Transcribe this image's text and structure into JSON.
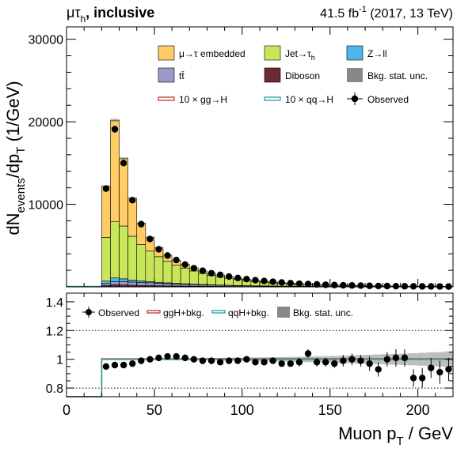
{
  "header": {
    "channel_prefix": "μτ",
    "channel_sub": "h",
    "channel_suffix": ", inclusive",
    "lumi_pre": "41.5 fb",
    "lumi_sup": "-1",
    "lumi_post": " (2017, 13 TeV)"
  },
  "colors": {
    "mu_tau_embedded": "#ffcc66",
    "jet_tau": "#c8e65a",
    "z_ll": "#4db6e6",
    "ttbar": "#9999cc",
    "diboson": "#6b2b35",
    "stat_unc": "#888888",
    "ggH": "#c0392b",
    "qqH": "#1fa39a",
    "data": "#000000"
  },
  "legend_main": [
    {
      "key": "emb",
      "pre": "μ→τ embedded",
      "sub": "",
      "kind": "box",
      "color_key": "mu_tau_embedded"
    },
    {
      "key": "jet",
      "pre": "Jet→τ",
      "sub": "h",
      "kind": "box",
      "color_key": "jet_tau"
    },
    {
      "key": "zll",
      "pre": "Z→ll",
      "sub": "",
      "kind": "box",
      "color_key": "z_ll"
    },
    {
      "key": "tt",
      "pre": "tt̄",
      "sub": "",
      "kind": "box",
      "color_key": "ttbar"
    },
    {
      "key": "vv",
      "pre": "Diboson",
      "sub": "",
      "kind": "box",
      "color_key": "diboson"
    },
    {
      "key": "stat",
      "pre": "Bkg. stat. unc.",
      "sub": "",
      "kind": "box",
      "color_key": "stat_unc"
    },
    {
      "key": "ggh",
      "pre": "10 × gg→H",
      "sub": "",
      "kind": "line",
      "color_key": "ggH"
    },
    {
      "key": "qqh",
      "pre": "10 × qq→H",
      "sub": "",
      "kind": "line",
      "color_key": "qqH"
    },
    {
      "key": "obs",
      "pre": "Observed",
      "sub": "",
      "kind": "point",
      "color_key": "data"
    }
  ],
  "legend_ratio": [
    {
      "key": "obs",
      "label": "Observed",
      "kind": "point",
      "color_key": "data"
    },
    {
      "key": "ggh",
      "label": "ggH+bkg.",
      "kind": "line",
      "color_key": "ggH"
    },
    {
      "key": "qqh",
      "label": "qqH+bkg.",
      "kind": "line",
      "color_key": "qqH"
    },
    {
      "key": "stat",
      "label": "Bkg. stat. unc.",
      "kind": "box",
      "color_key": "stat_unc"
    }
  ],
  "chart_data": {
    "type": "bar",
    "stacked": true,
    "xlabel_main": "Muon p",
    "xlabel_sub": "T",
    "xlabel_unit": " / GeV",
    "ylabel": "dN_events/dp_T (1/GeV)",
    "ylabel_parts": {
      "a": "dN",
      "a_sub": "events",
      "b": "/dp",
      "b_sub": "T",
      "c": "  (1/GeV)"
    },
    "xlim": [
      0,
      220
    ],
    "ylim_main": [
      0,
      31500
    ],
    "ylim_ratio": [
      0.74,
      1.46
    ],
    "x_ticks": [
      0,
      50,
      100,
      150,
      200
    ],
    "y_ticks_main": [
      10000,
      20000,
      30000
    ],
    "y_ticks_ratio": [
      0.8,
      1,
      1.2,
      1.4
    ],
    "ratio_dotted_lines": [
      0.8,
      1.2
    ],
    "bin_edges": [
      20,
      25,
      30,
      35,
      40,
      45,
      50,
      55,
      60,
      65,
      70,
      75,
      80,
      85,
      90,
      95,
      100,
      105,
      110,
      115,
      120,
      125,
      130,
      135,
      140,
      145,
      150,
      155,
      160,
      165,
      170,
      175,
      180,
      185,
      190,
      195,
      200,
      205,
      210,
      215,
      220
    ],
    "stack_order": [
      "diboson",
      "ttbar",
      "z_ll",
      "jet_tau",
      "mu_tau_embedded"
    ],
    "series": [
      {
        "name": "Diboson",
        "key": "diboson",
        "values": [
          150,
          250,
          220,
          190,
          170,
          150,
          130,
          115,
          100,
          90,
          80,
          70,
          60,
          55,
          48,
          42,
          37,
          33,
          29,
          26,
          23,
          20,
          18,
          16,
          14,
          12,
          11,
          10,
          9,
          8,
          7,
          6,
          6,
          5,
          5,
          4,
          4,
          4,
          3,
          3
        ]
      },
      {
        "name": "tt̄",
        "key": "ttbar",
        "values": [
          250,
          380,
          400,
          390,
          370,
          340,
          310,
          280,
          250,
          220,
          195,
          170,
          150,
          130,
          115,
          100,
          88,
          77,
          68,
          60,
          52,
          46,
          40,
          35,
          31,
          27,
          24,
          21,
          19,
          17,
          15,
          13,
          12,
          11,
          10,
          9,
          8,
          7,
          6,
          5
        ]
      },
      {
        "name": "Z→ll",
        "key": "z_ll",
        "values": [
          300,
          450,
          350,
          250,
          180,
          140,
          110,
          90,
          75,
          63,
          53,
          45,
          39,
          33,
          28,
          24,
          21,
          18,
          16,
          14,
          12,
          10,
          9,
          8,
          7,
          6,
          5,
          5,
          4,
          4,
          3,
          3,
          3,
          2,
          2,
          2,
          2,
          2,
          1,
          1
        ]
      },
      {
        "name": "Jet→τh",
        "key": "jet_tau",
        "values": [
          5300,
          6800,
          6400,
          5300,
          4400,
          3700,
          3100,
          2600,
          2200,
          1900,
          1600,
          1350,
          1150,
          1000,
          850,
          720,
          610,
          520,
          450,
          390,
          335,
          290,
          250,
          215,
          185,
          160,
          140,
          122,
          106,
          92,
          80,
          70,
          61,
          53,
          47,
          41,
          36,
          32,
          28,
          24
        ]
      },
      {
        "name": "μ→τ embedded",
        "key": "mu_tau_embedded",
        "values": [
          6200,
          12300,
          8200,
          4600,
          2600,
          1700,
          1120,
          780,
          580,
          450,
          360,
          300,
          250,
          215,
          185,
          160,
          140,
          120,
          106,
          94,
          83,
          74,
          66,
          58,
          52,
          46,
          41,
          37,
          33,
          30,
          27,
          24,
          22,
          20,
          18,
          16,
          15,
          14,
          13,
          12
        ]
      }
    ],
    "observed": [
      11900,
      19100,
      15000,
      10500,
      7600,
      5800,
      4550,
      3800,
      3250,
      2700,
      2260,
      1950,
      1650,
      1450,
      1250,
      1070,
      940,
      810,
      710,
      620,
      530,
      450,
      380,
      340,
      300,
      250,
      220,
      190,
      170,
      150,
      120,
      100,
      95,
      80,
      72,
      60,
      55,
      50,
      45,
      38
    ],
    "ratio_observed": [
      0.95,
      0.96,
      0.96,
      0.97,
      0.99,
      1.0,
      1.01,
      1.02,
      1.02,
      1.01,
      1.0,
      0.99,
      0.99,
      0.98,
      0.99,
      0.99,
      1.0,
      0.98,
      0.98,
      0.99,
      0.97,
      0.97,
      0.98,
      1.04,
      0.98,
      0.98,
      0.97,
      0.99,
      1.0,
      0.99,
      0.97,
      0.93,
      1.0,
      1.01,
      1.01,
      0.87,
      0.87,
      0.94,
      0.91,
      0.93
    ],
    "ratio_errors": [
      0.01,
      0.01,
      0.01,
      0.01,
      0.01,
      0.01,
      0.01,
      0.01,
      0.01,
      0.01,
      0.01,
      0.01,
      0.01,
      0.01,
      0.02,
      0.02,
      0.02,
      0.02,
      0.02,
      0.02,
      0.02,
      0.02,
      0.03,
      0.03,
      0.03,
      0.03,
      0.03,
      0.04,
      0.04,
      0.04,
      0.05,
      0.05,
      0.05,
      0.06,
      0.06,
      0.06,
      0.07,
      0.07,
      0.08,
      0.08
    ],
    "ratio_stat_unc": [
      0.005,
      0.005,
      0.005,
      0.005,
      0.005,
      0.005,
      0.006,
      0.006,
      0.007,
      0.007,
      0.008,
      0.008,
      0.009,
      0.01,
      0.01,
      0.011,
      0.012,
      0.013,
      0.014,
      0.015,
      0.016,
      0.017,
      0.018,
      0.02,
      0.021,
      0.022,
      0.024,
      0.026,
      0.028,
      0.03,
      0.032,
      0.034,
      0.036,
      0.038,
      0.04,
      0.042,
      0.045,
      0.048,
      0.05,
      0.055
    ]
  }
}
